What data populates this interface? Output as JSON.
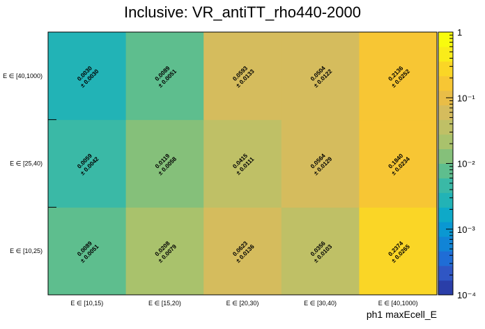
{
  "chart_data": {
    "type": "heatmap",
    "title": "Inclusive: VR_antiTT_rho440-2000",
    "xlabel": "ph1 maxEcell_E",
    "ylabel": "",
    "x_categories": [
      "E ∈ [10,15)",
      "E ∈ [15,20)",
      "E ∈ [20,30)",
      "E ∈ [30,40)",
      "E ∈ [40,1000)"
    ],
    "y_categories": [
      "E ∈ [10,25)",
      "E ∈ [25,40)",
      "E ∈ [40,1000)"
    ],
    "values": [
      [
        0.0089,
        0.0208,
        0.0623,
        0.0356,
        0.2374
      ],
      [
        0.0059,
        0.0119,
        0.0415,
        0.0564,
        0.184
      ],
      [
        0.003,
        0.0089,
        0.0593,
        0.0504,
        0.2136
      ]
    ],
    "value_labels": [
      [
        "0.0089",
        "0.0208",
        "0.0623",
        "0.0356",
        "0.2374"
      ],
      [
        "0.0059",
        "0.0119",
        "0.0415",
        "0.0564",
        "0.1840"
      ],
      [
        "0.0030",
        "0.0089",
        "0.0593",
        "0.0504",
        "0.2136"
      ]
    ],
    "error_labels": [
      [
        "± 0.0051",
        "± 0.0079",
        "± 0.0136",
        "± 0.0103",
        "± 0.0265"
      ],
      [
        "± 0.0042",
        "± 0.0058",
        "± 0.0111",
        "± 0.0129",
        "± 0.0234"
      ],
      [
        "± 0.0030",
        "± 0.0051",
        "± 0.0133",
        "± 0.0122",
        "± 0.0252"
      ]
    ],
    "colorbar": {
      "scale": "log",
      "range": [
        0.0001,
        1
      ],
      "tick_labels": [
        "1",
        "10⁻¹",
        "10⁻²",
        "10⁻³",
        "10⁻⁴"
      ],
      "tick_values": [
        1,
        0.1,
        0.01,
        0.001,
        0.0001
      ],
      "palette": [
        "#2a3ea8",
        "#2f56c4",
        "#1f6dd6",
        "#1184d6",
        "#0a98d2",
        "#0ea9c8",
        "#22b3b6",
        "#3ab9a6",
        "#5ebe8e",
        "#85c07a",
        "#a9c26c",
        "#bfc066",
        "#d5bc5d",
        "#e9bd47",
        "#f7c634",
        "#fad626",
        "#f9ec1a",
        "#f8fb0e"
      ]
    }
  }
}
